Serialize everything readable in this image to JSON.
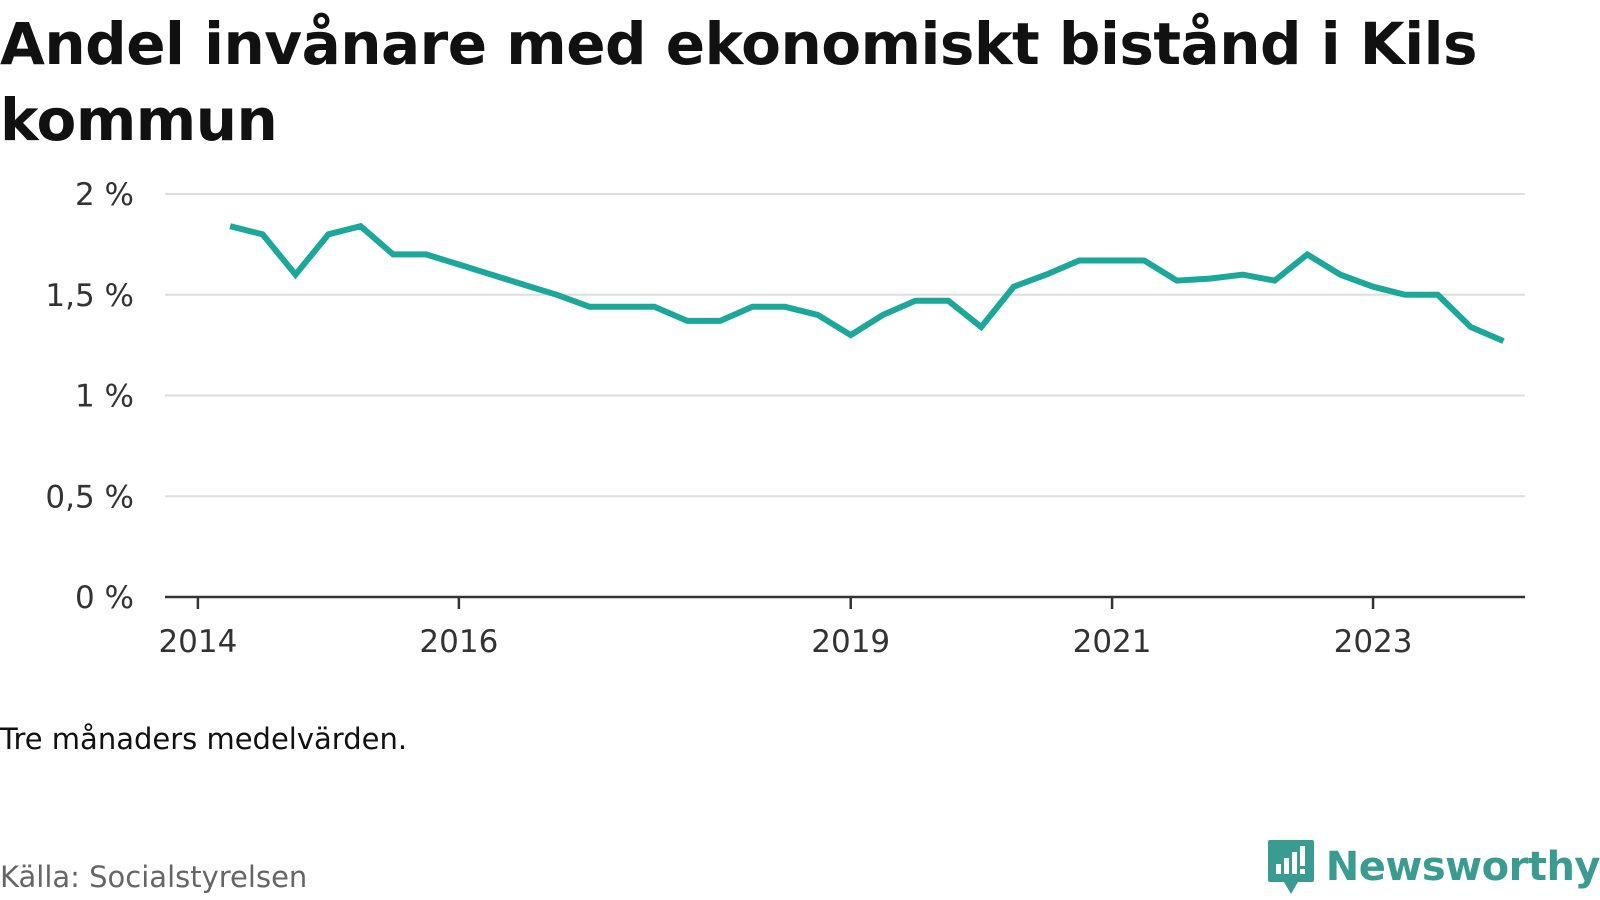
{
  "header": {
    "title": "Andel invånare med ekonomiskt bistånd i Kils kommun"
  },
  "footer": {
    "note": "Tre månaders medelvärden.",
    "source": "Källa: Socialstyrelsen",
    "brand": "Newsworthy"
  },
  "colors": {
    "line": "#1ba89a",
    "grid": "#dddddd",
    "axis": "#333333",
    "brand": "#3a9b91"
  },
  "chart_data": {
    "type": "line",
    "title": "Andel invånare med ekonomiskt bistånd i Kils kommun",
    "xlabel": "",
    "ylabel": "",
    "ylim": [
      0,
      2
    ],
    "xlim": [
      "2013-10-01",
      "2024-03-01"
    ],
    "grid": true,
    "y_ticks": [
      {
        "value": 0,
        "label": "0 %"
      },
      {
        "value": 0.5,
        "label": "0,5 %"
      },
      {
        "value": 1,
        "label": "1 %"
      },
      {
        "value": 1.5,
        "label": "1,5 %"
      },
      {
        "value": 2,
        "label": "2 %"
      }
    ],
    "x_ticks": [
      {
        "value": "2014-01-01",
        "label": "2014"
      },
      {
        "value": "2016-01-01",
        "label": "2016"
      },
      {
        "value": "2019-01-01",
        "label": "2019"
      },
      {
        "value": "2021-01-01",
        "label": "2021"
      },
      {
        "value": "2023-01-01",
        "label": "2023"
      }
    ],
    "series": [
      {
        "values": [
          {
            "x": "2014-04-01",
            "y": 1.84
          },
          {
            "x": "2014-07-01",
            "y": 1.8
          },
          {
            "x": "2014-10-01",
            "y": 1.6
          },
          {
            "x": "2015-01-01",
            "y": 1.8
          },
          {
            "x": "2015-04-01",
            "y": 1.84
          },
          {
            "x": "2015-07-01",
            "y": 1.7
          },
          {
            "x": "2015-10-01",
            "y": 1.7
          },
          {
            "x": "2016-01-01",
            "y": 1.65
          },
          {
            "x": "2016-04-01",
            "y": 1.6
          },
          {
            "x": "2016-07-01",
            "y": 1.55
          },
          {
            "x": "2016-10-01",
            "y": 1.5
          },
          {
            "x": "2017-01-01",
            "y": 1.44
          },
          {
            "x": "2017-04-01",
            "y": 1.44
          },
          {
            "x": "2017-07-01",
            "y": 1.44
          },
          {
            "x": "2017-10-01",
            "y": 1.37
          },
          {
            "x": "2018-01-01",
            "y": 1.37
          },
          {
            "x": "2018-04-01",
            "y": 1.44
          },
          {
            "x": "2018-07-01",
            "y": 1.44
          },
          {
            "x": "2018-10-01",
            "y": 1.4
          },
          {
            "x": "2019-01-01",
            "y": 1.3
          },
          {
            "x": "2019-04-01",
            "y": 1.4
          },
          {
            "x": "2019-07-01",
            "y": 1.47
          },
          {
            "x": "2019-10-01",
            "y": 1.47
          },
          {
            "x": "2020-01-01",
            "y": 1.34
          },
          {
            "x": "2020-04-01",
            "y": 1.54
          },
          {
            "x": "2020-07-01",
            "y": 1.6
          },
          {
            "x": "2020-10-01",
            "y": 1.67
          },
          {
            "x": "2021-01-01",
            "y": 1.67
          },
          {
            "x": "2021-04-01",
            "y": 1.67
          },
          {
            "x": "2021-07-01",
            "y": 1.57
          },
          {
            "x": "2021-10-01",
            "y": 1.58
          },
          {
            "x": "2022-01-01",
            "y": 1.6
          },
          {
            "x": "2022-04-01",
            "y": 1.57
          },
          {
            "x": "2022-07-01",
            "y": 1.7
          },
          {
            "x": "2022-10-01",
            "y": 1.6
          },
          {
            "x": "2023-01-01",
            "y": 1.54
          },
          {
            "x": "2023-04-01",
            "y": 1.5
          },
          {
            "x": "2023-07-01",
            "y": 1.5
          },
          {
            "x": "2023-10-01",
            "y": 1.34
          },
          {
            "x": "2024-01-01",
            "y": 1.27
          }
        ]
      }
    ]
  }
}
